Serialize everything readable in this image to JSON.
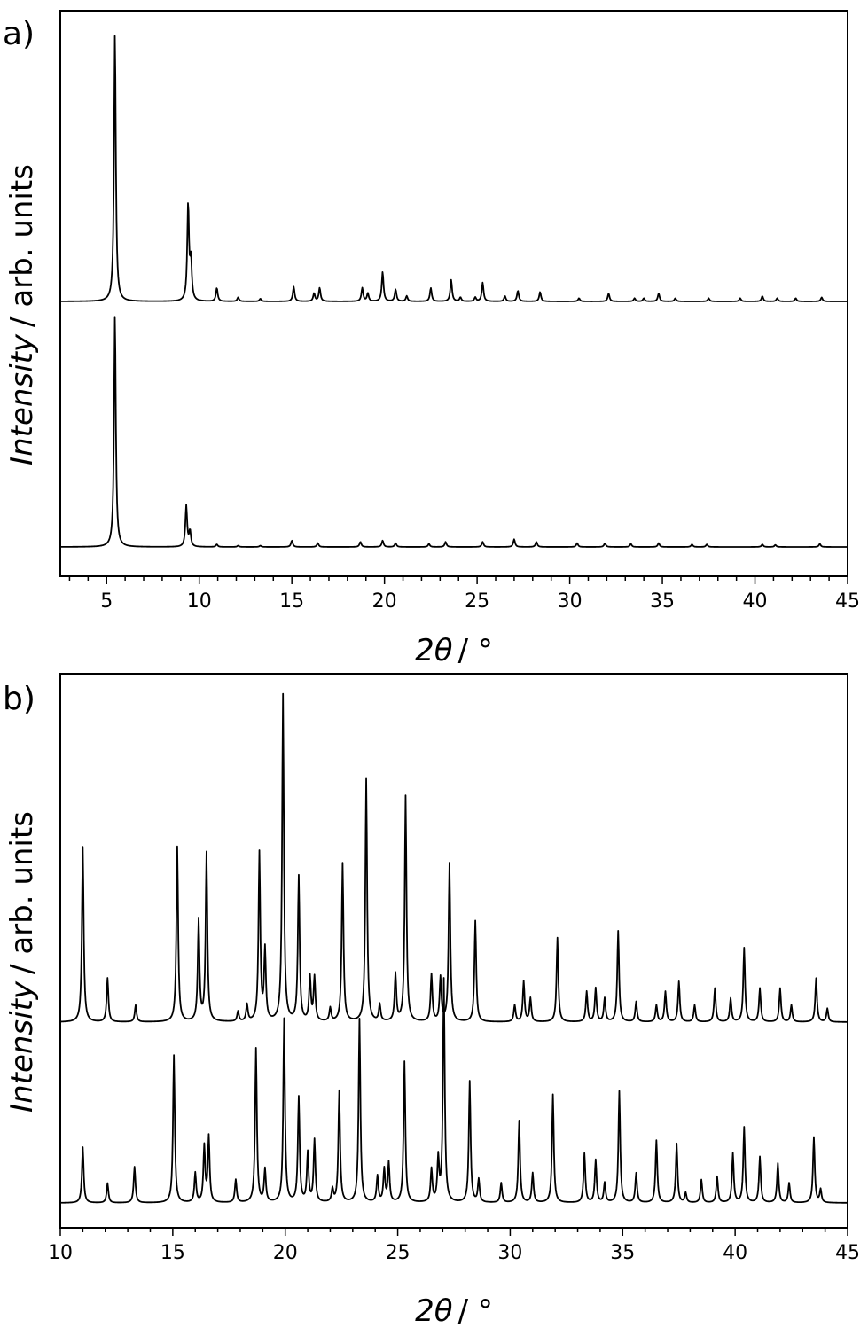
{
  "chart_data": [
    {
      "panel_label": "a)",
      "type": "line",
      "xlabel_italic": "2θ",
      "xlabel_unit": "/ °",
      "ylabel_italic": "Intensity",
      "ylabel_rest": "/ arb. units",
      "xlim": [
        2.5,
        45
      ],
      "xticks": [
        "5",
        "10",
        "15",
        "20",
        "25",
        "30",
        "35",
        "40",
        "45"
      ],
      "yticks_visible": false,
      "series": [
        {
          "position": "upper",
          "baseline": 1.0,
          "peaks": [
            [
              5.45,
              1.0
            ],
            [
              9.4,
              0.36
            ],
            [
              9.55,
              0.14
            ],
            [
              10.95,
              0.05
            ],
            [
              12.1,
              0.015
            ],
            [
              13.3,
              0.01
            ],
            [
              15.1,
              0.055
            ],
            [
              16.2,
              0.03
            ],
            [
              16.5,
              0.05
            ],
            [
              18.8,
              0.05
            ],
            [
              19.1,
              0.03
            ],
            [
              19.9,
              0.11
            ],
            [
              20.6,
              0.045
            ],
            [
              21.2,
              0.02
            ],
            [
              22.5,
              0.05
            ],
            [
              23.6,
              0.08
            ],
            [
              24.1,
              0.015
            ],
            [
              24.9,
              0.015
            ],
            [
              25.3,
              0.07
            ],
            [
              26.5,
              0.02
            ],
            [
              27.2,
              0.04
            ],
            [
              28.4,
              0.035
            ],
            [
              30.5,
              0.012
            ],
            [
              32.1,
              0.03
            ],
            [
              33.5,
              0.012
            ],
            [
              34.0,
              0.012
            ],
            [
              34.8,
              0.03
            ],
            [
              35.7,
              0.012
            ],
            [
              37.5,
              0.012
            ],
            [
              39.2,
              0.012
            ],
            [
              40.4,
              0.02
            ],
            [
              41.2,
              0.012
            ],
            [
              42.2,
              0.012
            ],
            [
              43.6,
              0.015
            ]
          ]
        },
        {
          "position": "lower",
          "baseline": 0.0,
          "peaks": [
            [
              5.45,
              0.9
            ],
            [
              9.3,
              0.16
            ],
            [
              9.5,
              0.06
            ],
            [
              10.95,
              0.01
            ],
            [
              12.1,
              0.005
            ],
            [
              13.3,
              0.005
            ],
            [
              15.0,
              0.025
            ],
            [
              16.4,
              0.015
            ],
            [
              18.7,
              0.02
            ],
            [
              19.9,
              0.025
            ],
            [
              20.6,
              0.015
            ],
            [
              22.4,
              0.012
            ],
            [
              23.3,
              0.02
            ],
            [
              25.3,
              0.02
            ],
            [
              27.0,
              0.03
            ],
            [
              28.2,
              0.02
            ],
            [
              30.4,
              0.015
            ],
            [
              31.9,
              0.015
            ],
            [
              33.3,
              0.012
            ],
            [
              34.8,
              0.015
            ],
            [
              36.6,
              0.01
            ],
            [
              37.4,
              0.01
            ],
            [
              40.4,
              0.01
            ],
            [
              41.1,
              0.008
            ],
            [
              43.5,
              0.012
            ]
          ]
        }
      ]
    },
    {
      "panel_label": "b)",
      "type": "line",
      "xlabel_italic": "2θ",
      "xlabel_unit": "/ °",
      "ylabel_italic": "Intensity",
      "ylabel_rest": "/ arb. units",
      "xlim": [
        10,
        45
      ],
      "xticks": [
        "10",
        "15",
        "20",
        "25",
        "30",
        "35",
        "40",
        "45"
      ],
      "yticks_visible": false,
      "series": [
        {
          "position": "upper",
          "baseline": 1.0,
          "peaks": [
            [
              11.0,
              0.52
            ],
            [
              12.1,
              0.13
            ],
            [
              13.35,
              0.05
            ],
            [
              15.2,
              0.52
            ],
            [
              16.15,
              0.3
            ],
            [
              16.5,
              0.5
            ],
            [
              17.9,
              0.03
            ],
            [
              18.3,
              0.05
            ],
            [
              18.85,
              0.5
            ],
            [
              19.1,
              0.21
            ],
            [
              19.9,
              0.97
            ],
            [
              20.6,
              0.43
            ],
            [
              21.1,
              0.13
            ],
            [
              21.3,
              0.13
            ],
            [
              22.0,
              0.04
            ],
            [
              22.55,
              0.47
            ],
            [
              23.6,
              0.72
            ],
            [
              24.2,
              0.05
            ],
            [
              24.9,
              0.14
            ],
            [
              25.35,
              0.67
            ],
            [
              26.5,
              0.14
            ],
            [
              26.9,
              0.13
            ],
            [
              27.3,
              0.47
            ],
            [
              28.45,
              0.3
            ],
            [
              30.2,
              0.05
            ],
            [
              30.6,
              0.12
            ],
            [
              30.9,
              0.07
            ],
            [
              32.1,
              0.25
            ],
            [
              33.4,
              0.09
            ],
            [
              33.8,
              0.1
            ],
            [
              34.2,
              0.07
            ],
            [
              34.8,
              0.27
            ],
            [
              35.6,
              0.06
            ],
            [
              36.5,
              0.05
            ],
            [
              36.9,
              0.09
            ],
            [
              37.5,
              0.12
            ],
            [
              38.2,
              0.05
            ],
            [
              39.1,
              0.1
            ],
            [
              39.8,
              0.07
            ],
            [
              40.4,
              0.22
            ],
            [
              41.1,
              0.1
            ],
            [
              42.0,
              0.1
            ],
            [
              42.5,
              0.05
            ],
            [
              43.6,
              0.13
            ],
            [
              44.1,
              0.04
            ]
          ]
        },
        {
          "position": "lower",
          "baseline": 0.0,
          "peaks": [
            [
              11.0,
              0.17
            ],
            [
              12.1,
              0.06
            ],
            [
              13.3,
              0.11
            ],
            [
              15.05,
              0.45
            ],
            [
              16.0,
              0.09
            ],
            [
              16.4,
              0.17
            ],
            [
              16.6,
              0.2
            ],
            [
              17.8,
              0.07
            ],
            [
              18.7,
              0.47
            ],
            [
              19.1,
              0.1
            ],
            [
              19.95,
              0.56
            ],
            [
              20.6,
              0.32
            ],
            [
              21.0,
              0.15
            ],
            [
              21.3,
              0.19
            ],
            [
              22.1,
              0.04
            ],
            [
              22.4,
              0.34
            ],
            [
              23.3,
              0.56
            ],
            [
              24.1,
              0.08
            ],
            [
              24.4,
              0.1
            ],
            [
              24.6,
              0.12
            ],
            [
              25.3,
              0.43
            ],
            [
              26.5,
              0.1
            ],
            [
              26.8,
              0.13
            ],
            [
              27.05,
              0.68
            ],
            [
              28.2,
              0.37
            ],
            [
              28.6,
              0.07
            ],
            [
              29.6,
              0.06
            ],
            [
              30.4,
              0.25
            ],
            [
              31.0,
              0.09
            ],
            [
              31.9,
              0.33
            ],
            [
              33.3,
              0.15
            ],
            [
              33.8,
              0.13
            ],
            [
              34.2,
              0.06
            ],
            [
              34.85,
              0.34
            ],
            [
              35.6,
              0.09
            ],
            [
              36.5,
              0.19
            ],
            [
              37.4,
              0.18
            ],
            [
              37.8,
              0.03
            ],
            [
              38.5,
              0.07
            ],
            [
              39.2,
              0.08
            ],
            [
              39.9,
              0.15
            ],
            [
              40.4,
              0.23
            ],
            [
              41.1,
              0.14
            ],
            [
              41.9,
              0.12
            ],
            [
              42.4,
              0.06
            ],
            [
              43.5,
              0.2
            ],
            [
              43.8,
              0.04
            ]
          ]
        }
      ]
    }
  ]
}
